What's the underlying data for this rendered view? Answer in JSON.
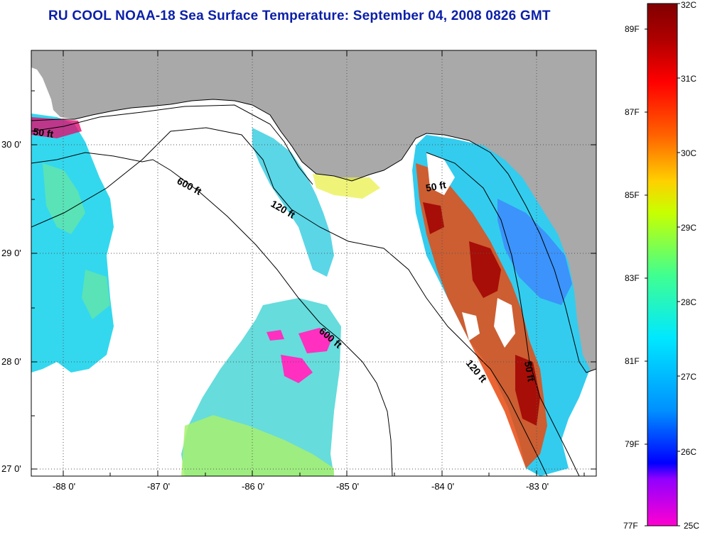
{
  "title": "RU COOL  NOAA-18  Sea Surface Temperature:  September 04, 2008 0826 GMT",
  "axes": {
    "x_ticks": [
      "-88 0'",
      "-87 0'",
      "-86 0'",
      "-85 0'",
      "-84 0'",
      "-83 0'"
    ],
    "y_ticks": [
      "30 0'",
      "29 0'",
      "28 0'",
      "27 0'"
    ]
  },
  "contours": {
    "c1": "50 ft",
    "c2": "600 ft",
    "c3": "120 ft",
    "c4": "50 ft",
    "c5": "600 ft",
    "c6": "120 ft",
    "c7": "50 ft"
  },
  "colorbar": {
    "celsius": [
      "32C",
      "31C",
      "30C",
      "29C",
      "28C",
      "27C",
      "26C",
      "25C"
    ],
    "fahrenheit": [
      "89F",
      "87F",
      "85F",
      "83F",
      "81F",
      "79F",
      "77F"
    ],
    "colors": [
      "#ff00d0",
      "#8a00ff",
      "#0000ff",
      "#0090ff",
      "#00e8ff",
      "#40ff90",
      "#c8ff00",
      "#ffd000",
      "#ff6000",
      "#ff0000",
      "#a00000",
      "#800000"
    ]
  },
  "colors": {
    "land": "#a9a9a9",
    "no_data": "#ffffff",
    "title": "#0b1fa8"
  }
}
